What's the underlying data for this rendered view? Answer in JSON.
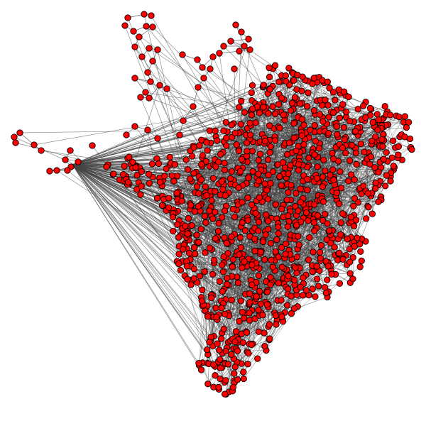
{
  "diagram": {
    "type": "geographic-network-graph",
    "background_color": "#ffffff",
    "node_fill_color": "#ff0000",
    "node_stroke_color": "#000000",
    "edge_color": "#444444",
    "labels": []
  }
}
